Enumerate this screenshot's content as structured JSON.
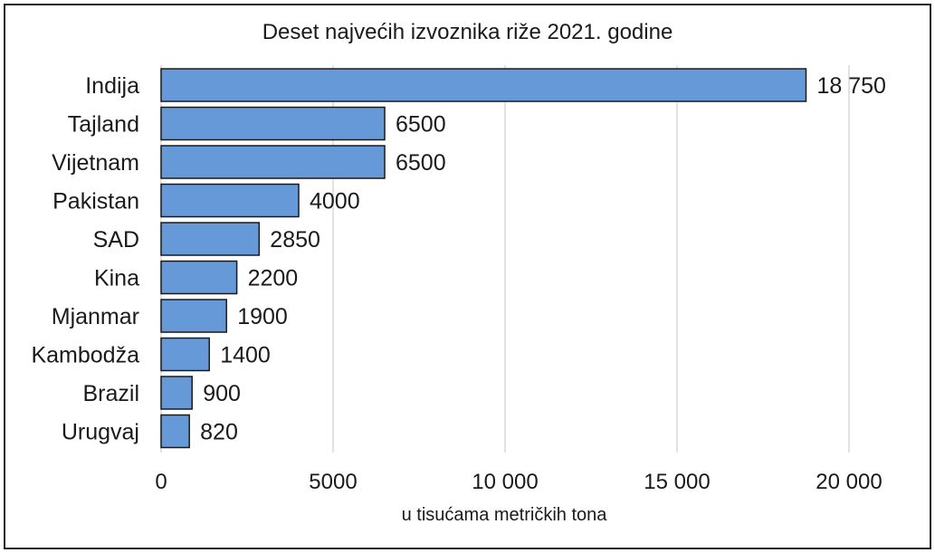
{
  "chart_data": {
    "type": "bar",
    "orientation": "horizontal",
    "title": "Deset najvećih izvoznika riže 2021. godine",
    "xlabel": "u tisućama metričkih tona",
    "ylabel": "",
    "categories": [
      "Indija",
      "Tajland",
      "Vijetnam",
      "Pakistan",
      "SAD",
      "Kina",
      "Mjanmar",
      "Kambodža",
      "Brazil",
      "Urugvaj"
    ],
    "values": [
      18750,
      6500,
      6500,
      4000,
      2850,
      2200,
      1900,
      1400,
      900,
      820
    ],
    "value_labels": [
      "18 750",
      "6500",
      "6500",
      "4000",
      "2850",
      "2200",
      "1900",
      "1400",
      "900",
      "820"
    ],
    "xlim": [
      0,
      20000
    ],
    "ticks": [
      0,
      5000,
      10000,
      15000,
      20000
    ],
    "tick_labels": [
      "0",
      "5000",
      "10 000",
      "15 000",
      "20 000"
    ],
    "grid": "vertical",
    "bar_color": "#6699d8",
    "bar_edge_color": "#1a1a1a",
    "grid_color": "#d9d9d9"
  }
}
